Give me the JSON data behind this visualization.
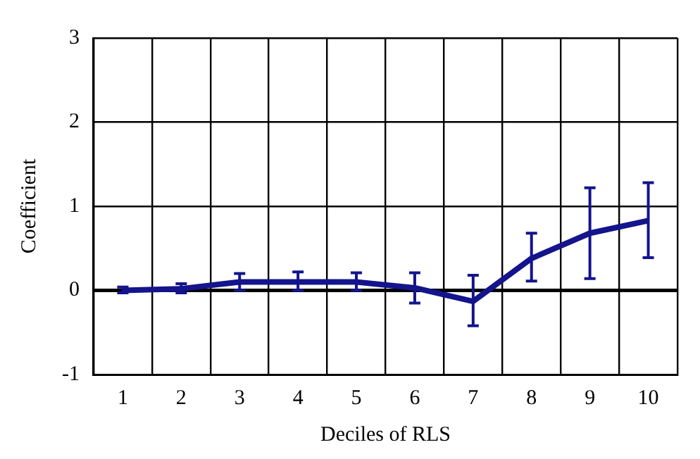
{
  "chart_data": {
    "type": "line",
    "xlabel": "Deciles of RLS",
    "ylabel": "Coefficient",
    "categories": [
      "1",
      "2",
      "3",
      "4",
      "5",
      "6",
      "7",
      "8",
      "9",
      "10"
    ],
    "series": [
      {
        "color": "#14148c",
        "values": [
          0.0,
          0.02,
          0.1,
          0.1,
          0.1,
          0.03,
          -0.13,
          0.38,
          0.68,
          0.83
        ],
        "errors": [
          [
            -0.03,
            0.04
          ],
          [
            -0.03,
            0.08
          ],
          [
            0.0,
            0.2
          ],
          [
            0.0,
            0.22
          ],
          [
            0.0,
            0.21
          ],
          [
            -0.15,
            0.21
          ],
          [
            -0.42,
            0.18
          ],
          [
            0.11,
            0.68
          ],
          [
            0.14,
            1.22
          ],
          [
            0.39,
            1.28
          ]
        ]
      }
    ],
    "ylim": [
      -1,
      3
    ],
    "yticks": [
      -1,
      0,
      1,
      2,
      3
    ],
    "grid": true,
    "legend": false,
    "marker": "none",
    "line_style": "solid",
    "ref_lines": [
      {
        "axis": "y",
        "value": 0,
        "color": "#000000"
      }
    ]
  }
}
